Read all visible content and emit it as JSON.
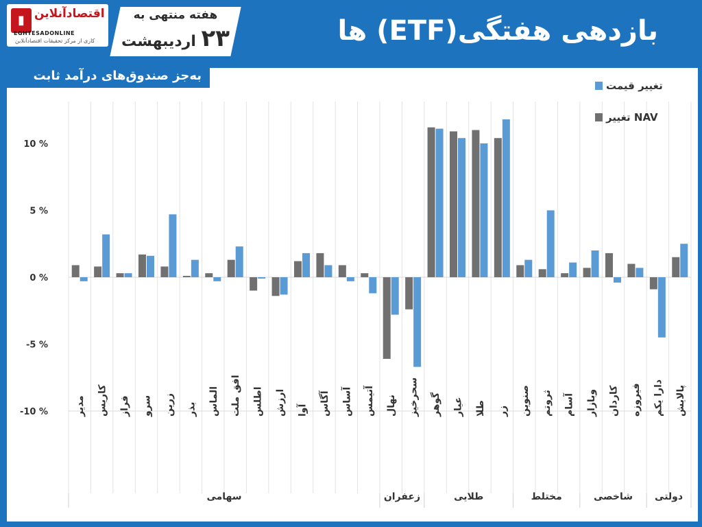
{
  "logo": {
    "name": "اقتصادآنلاین",
    "latin": "EGHTESADONLINE",
    "tagline": "کاری از مرکز تحقیقات اقتصادآنلاین"
  },
  "header": {
    "title": "بازدهی هفتگی(ETF) ها",
    "week_label": "هفته منتهی به",
    "week_day": "۲۳",
    "week_month": "اردیبهشت",
    "subtitle": "به‌جز صندوق‌های درآمد ثابت"
  },
  "colors": {
    "frame": "#1e73be",
    "price_bar": "#5b9bd5",
    "nav_bar": "#707070",
    "brand_red": "#c4161c"
  },
  "chart_data": {
    "type": "bar",
    "ylim": [
      -10,
      13
    ],
    "yticks": [
      -10,
      -5,
      0,
      5,
      10
    ],
    "ytick_labels": [
      "-10 %",
      "-5 %",
      "0 %",
      "5 %",
      "10 %"
    ],
    "grid": "vertical-category-separators",
    "legend_position": "top-right",
    "categories": [
      "مدیر",
      "کاریس",
      "فراز",
      "سرو",
      "زرین",
      "بذر",
      "الماس",
      "افق ملت",
      "اطلس",
      "ارزش",
      "آوا",
      "آگاس",
      "آساس",
      "آتیمس",
      "نهال",
      "سحرخیز",
      "گوهر",
      "عیار",
      "طلا",
      "زر",
      "صنوین",
      "ثروتم",
      "آسام",
      "وبازار",
      "کاردان",
      "فیروزه",
      "دارا یکم",
      "پالایش"
    ],
    "groups": [
      {
        "label": "سهامی",
        "count": 14
      },
      {
        "label": "زعفران",
        "count": 2
      },
      {
        "label": "طلایی",
        "count": 4
      },
      {
        "label": "مختلط",
        "count": 3
      },
      {
        "label": "شاخصی",
        "count": 3
      },
      {
        "label": "دولتی",
        "count": 2
      }
    ],
    "series": [
      {
        "name": "تغییر NAV",
        "values": [
          0.9,
          0.8,
          0.3,
          1.7,
          0.8,
          0.1,
          0.3,
          1.3,
          -1.0,
          -1.4,
          1.2,
          1.8,
          0.9,
          0.3,
          -6.1,
          -2.4,
          11.2,
          10.9,
          11.0,
          10.4,
          0.9,
          0.6,
          0.3,
          0.7,
          1.8,
          1.0,
          -0.9,
          1.5
        ]
      },
      {
        "name": "تغییر قیمت",
        "values": [
          -0.3,
          3.2,
          0.3,
          1.6,
          4.7,
          1.3,
          -0.3,
          2.3,
          -0.1,
          -1.3,
          1.8,
          0.9,
          -0.3,
          -1.2,
          -2.8,
          -6.7,
          11.1,
          10.4,
          10.0,
          11.8,
          1.3,
          5.0,
          1.1,
          2.0,
          -0.4,
          0.7,
          -4.5,
          2.5
        ]
      }
    ]
  }
}
